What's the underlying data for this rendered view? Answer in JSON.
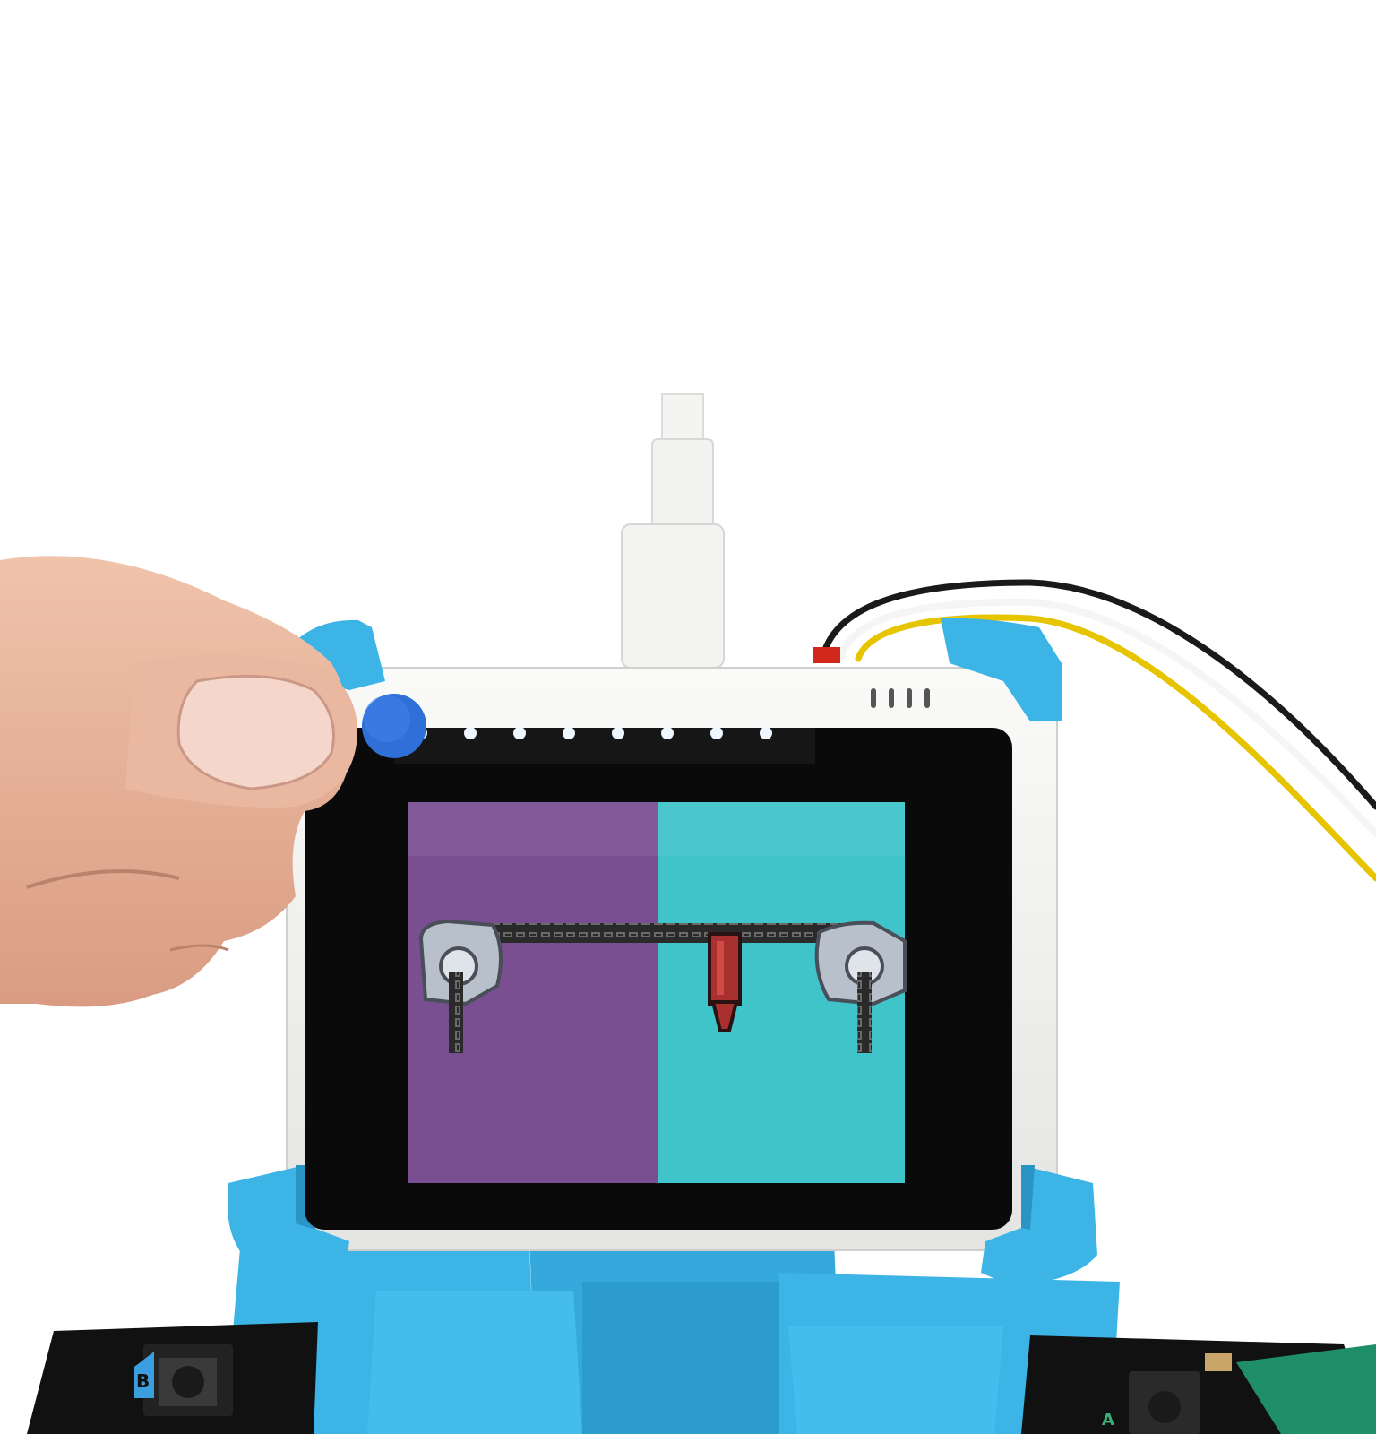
{
  "scene": {
    "background": "#ffffff",
    "colors": {
      "mount_blue": "#3db4e6",
      "mount_shadow": "#2a95c4",
      "case_white": "#f2f2f0",
      "bezel_black": "#0a0a0a",
      "screen_purple": "#7a4f92",
      "screen_teal": "#3ec4c9",
      "button_blue": "#2f6fd8",
      "skin": "#e8b69e",
      "board_black": "#111111",
      "wire_red": "#d0291c",
      "wire_black": "#1a1a1a",
      "wire_white": "#f5f5f5",
      "wire_yellow": "#e7c400",
      "board_green": "#1f8f6a"
    },
    "device": {
      "button_icon": "blue-round-button-icon",
      "vent_count": 4,
      "led_count": 8
    },
    "screen": {
      "left_panel": "purple",
      "right_panel": "teal",
      "sprites": [
        "chain-bar",
        "left-pulley",
        "right-pulley",
        "red-marker",
        "hanging-chain-left",
        "hanging-chain-right"
      ]
    },
    "boards": {
      "left_label": "B",
      "right_label": "A"
    }
  }
}
